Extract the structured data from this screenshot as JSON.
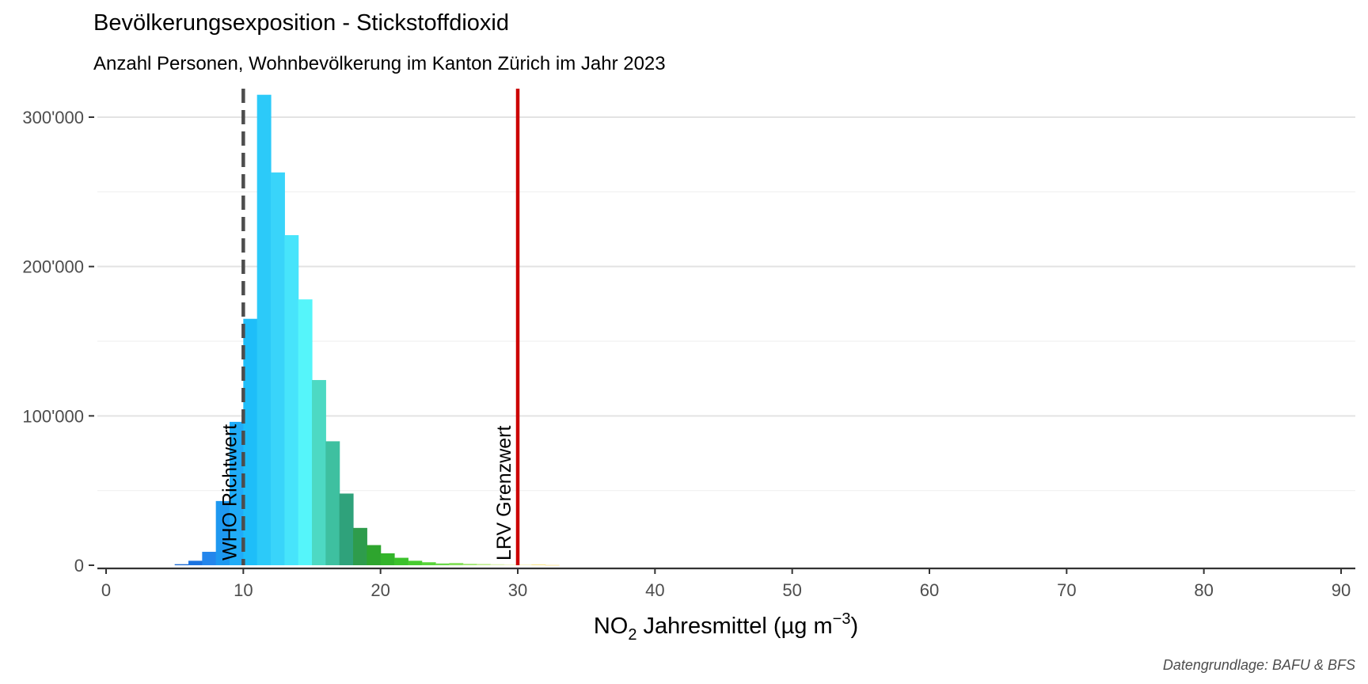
{
  "chart_data": {
    "type": "bar",
    "title": "Bevölkerungsexposition - Stickstoffdioxid",
    "subtitle": "Anzahl Personen, Wohnbevölkerung im Kanton Zürich im Jahr 2023",
    "xlabel": {
      "main": "NO",
      "subscript": "2",
      "rest": " Jahresmittel (µg m",
      "superscript": "−3",
      "close": ")"
    },
    "ylabel": "",
    "caption": "Datengrundlage: BAFU & BFS",
    "xlim": [
      0,
      90
    ],
    "ylim": [
      0,
      320000
    ],
    "x_ticks": [
      0,
      10,
      20,
      30,
      40,
      50,
      60,
      70,
      80,
      90
    ],
    "x_tick_labels": [
      "0",
      "10",
      "20",
      "30",
      "40",
      "50",
      "60",
      "70",
      "80",
      "90"
    ],
    "y_ticks": [
      0,
      100000,
      200000,
      300000
    ],
    "y_tick_labels": [
      "0",
      "100'000",
      "200'000",
      "300'000"
    ],
    "grid": true,
    "bin_width": 1,
    "bins": [
      {
        "x0": 5,
        "value": 700,
        "color": "#1565d0"
      },
      {
        "x0": 6,
        "value": 3000,
        "color": "#1c74e0"
      },
      {
        "x0": 7,
        "value": 9000,
        "color": "#2486ec"
      },
      {
        "x0": 8,
        "value": 43000,
        "color": "#1e98f0"
      },
      {
        "x0": 9,
        "value": 96000,
        "color": "#20acf8"
      },
      {
        "x0": 10,
        "value": 165000,
        "color": "#1ebef9"
      },
      {
        "x0": 11,
        "value": 315000,
        "color": "#2ccaf9"
      },
      {
        "x0": 12,
        "value": 263000,
        "color": "#39d4fa"
      },
      {
        "x0": 13,
        "value": 221000,
        "color": "#47e4fb"
      },
      {
        "x0": 14,
        "value": 178000,
        "color": "#55f5fa"
      },
      {
        "x0": 15,
        "value": 124000,
        "color": "#4dd9c3"
      },
      {
        "x0": 16,
        "value": 83000,
        "color": "#3ec0a0"
      },
      {
        "x0": 17,
        "value": 48000,
        "color": "#2fa27b"
      },
      {
        "x0": 18,
        "value": 25000,
        "color": "#2e9c4c"
      },
      {
        "x0": 19,
        "value": 13500,
        "color": "#2ea52e"
      },
      {
        "x0": 20,
        "value": 8000,
        "color": "#33b42a"
      },
      {
        "x0": 21,
        "value": 5000,
        "color": "#3cc22c"
      },
      {
        "x0": 22,
        "value": 3000,
        "color": "#48cc30"
      },
      {
        "x0": 23,
        "value": 2000,
        "color": "#58d43a"
      },
      {
        "x0": 24,
        "value": 1200,
        "color": "#6ad84a"
      },
      {
        "x0": 25,
        "value": 1500,
        "color": "#86e05c"
      },
      {
        "x0": 26,
        "value": 1000,
        "color": "#a3e874"
      },
      {
        "x0": 27,
        "value": 900,
        "color": "#c2ee90"
      },
      {
        "x0": 28,
        "value": 700,
        "color": "#dff3b4"
      },
      {
        "x0": 29,
        "value": 500,
        "color": "#f2f5c4"
      },
      {
        "x0": 30,
        "value": 400,
        "color": "#f8f2b4"
      },
      {
        "x0": 31,
        "value": 600,
        "color": "#fbe78a"
      },
      {
        "x0": 32,
        "value": 150,
        "color": "#fbd860"
      }
    ],
    "reference_lines": [
      {
        "x": 10,
        "label": "WHO Richtwert",
        "style": "dashed",
        "color": "#4d4d4d"
      },
      {
        "x": 30,
        "label": "LRV Grenzwert",
        "style": "solid",
        "color": "#cc0000"
      }
    ]
  }
}
